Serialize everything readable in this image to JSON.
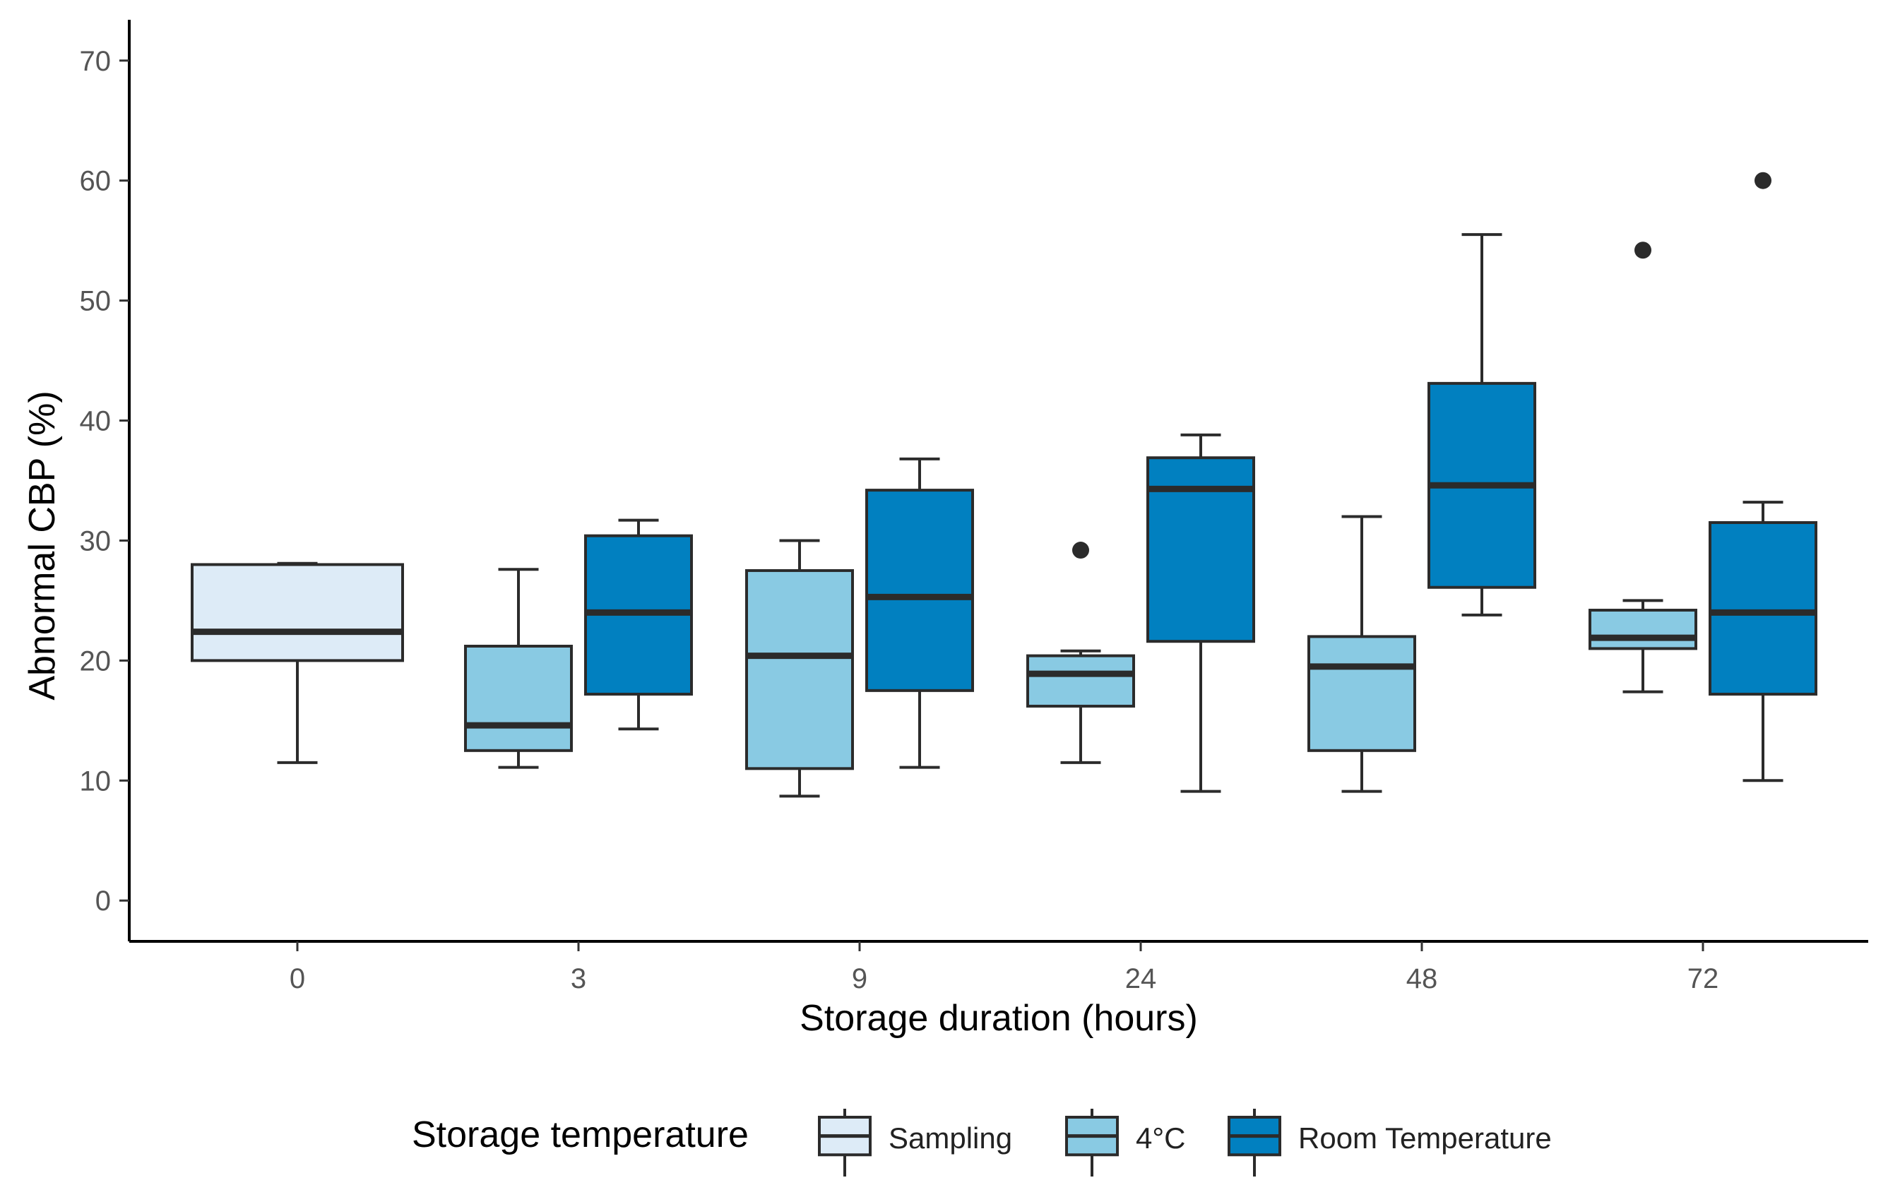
{
  "chart_data": {
    "type": "box",
    "title": "",
    "xlabel": "Storage duration (hours)",
    "ylabel": "Abnormal CBP (%)",
    "ylim": [
      -3.4,
      73.4
    ],
    "yticks": [
      0,
      10,
      20,
      30,
      40,
      50,
      60,
      70
    ],
    "categories": [
      "0",
      "3",
      "9",
      "24",
      "48",
      "72"
    ],
    "grid": false,
    "legend": {
      "title": "Storage temperature",
      "position": "bottom",
      "entries": [
        {
          "name": "Sampling",
          "color": "#DDEBF7"
        },
        {
          "name": "4°C",
          "color": "#89CAE3"
        },
        {
          "name": "Room Temperature",
          "color": "#0180C0"
        }
      ]
    },
    "series": [
      {
        "name": "Sampling",
        "color": "#DDEBF7",
        "boxes": [
          {
            "category": "0",
            "min": 11.5,
            "q1": 20,
            "median": 22.4,
            "q3": 28,
            "max": 28.1,
            "outliers": []
          }
        ]
      },
      {
        "name": "4°C",
        "color": "#89CAE3",
        "boxes": [
          {
            "category": "3",
            "min": 11.1,
            "q1": 12.5,
            "median": 14.6,
            "q3": 21.2,
            "max": 27.6,
            "outliers": []
          },
          {
            "category": "9",
            "min": 8.7,
            "q1": 11,
            "median": 20.4,
            "q3": 27.5,
            "max": 30,
            "outliers": []
          },
          {
            "category": "24",
            "min": 11.5,
            "q1": 16.2,
            "median": 18.9,
            "q3": 20.4,
            "max": 20.8,
            "outliers": [
              29.2
            ]
          },
          {
            "category": "48",
            "min": 9.1,
            "q1": 12.5,
            "median": 19.5,
            "q3": 22,
            "max": 32,
            "outliers": []
          },
          {
            "category": "72",
            "min": 17.4,
            "q1": 21,
            "median": 21.9,
            "q3": 24.2,
            "max": 25,
            "outliers": [
              54.2
            ]
          }
        ]
      },
      {
        "name": "Room Temperature",
        "color": "#0180C0",
        "boxes": [
          {
            "category": "3",
            "min": 14.3,
            "q1": 17.2,
            "median": 24,
            "q3": 30.4,
            "max": 31.7,
            "outliers": []
          },
          {
            "category": "9",
            "min": 11.1,
            "q1": 17.5,
            "median": 25.3,
            "q3": 34.2,
            "max": 36.8,
            "outliers": []
          },
          {
            "category": "24",
            "min": 9.1,
            "q1": 21.6,
            "median": 34.3,
            "q3": 36.9,
            "max": 38.8,
            "outliers": []
          },
          {
            "category": "48",
            "min": 23.8,
            "q1": 26.1,
            "median": 34.6,
            "q3": 43.1,
            "max": 55.5,
            "outliers": []
          },
          {
            "category": "72",
            "min": 10,
            "q1": 17.2,
            "median": 24,
            "q3": 31.5,
            "max": 33.2,
            "outliers": [
              60
            ]
          }
        ]
      }
    ]
  }
}
